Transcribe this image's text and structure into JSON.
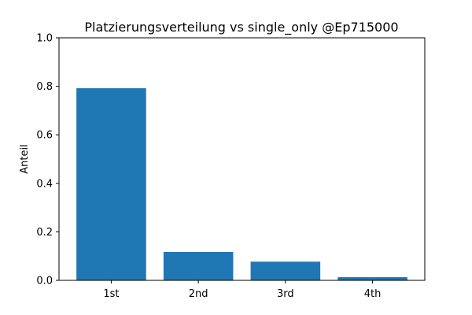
{
  "chart_data": {
    "type": "bar",
    "title": "Platzierungsverteilung vs single_only @Ep715000",
    "xlabel": "",
    "ylabel": "Anteil",
    "categories": [
      "1st",
      "2nd",
      "3rd",
      "4th"
    ],
    "values": [
      0.792,
      0.117,
      0.077,
      0.013
    ],
    "ylim": [
      0,
      1.0
    ],
    "yticks": [
      0.0,
      0.2,
      0.4,
      0.6,
      0.8,
      1.0
    ],
    "ytick_labels": [
      "0.0",
      "0.2",
      "0.4",
      "0.6",
      "0.8",
      "1.0"
    ],
    "bar_color": "#1f77b4",
    "grid": false,
    "legend": "none"
  }
}
